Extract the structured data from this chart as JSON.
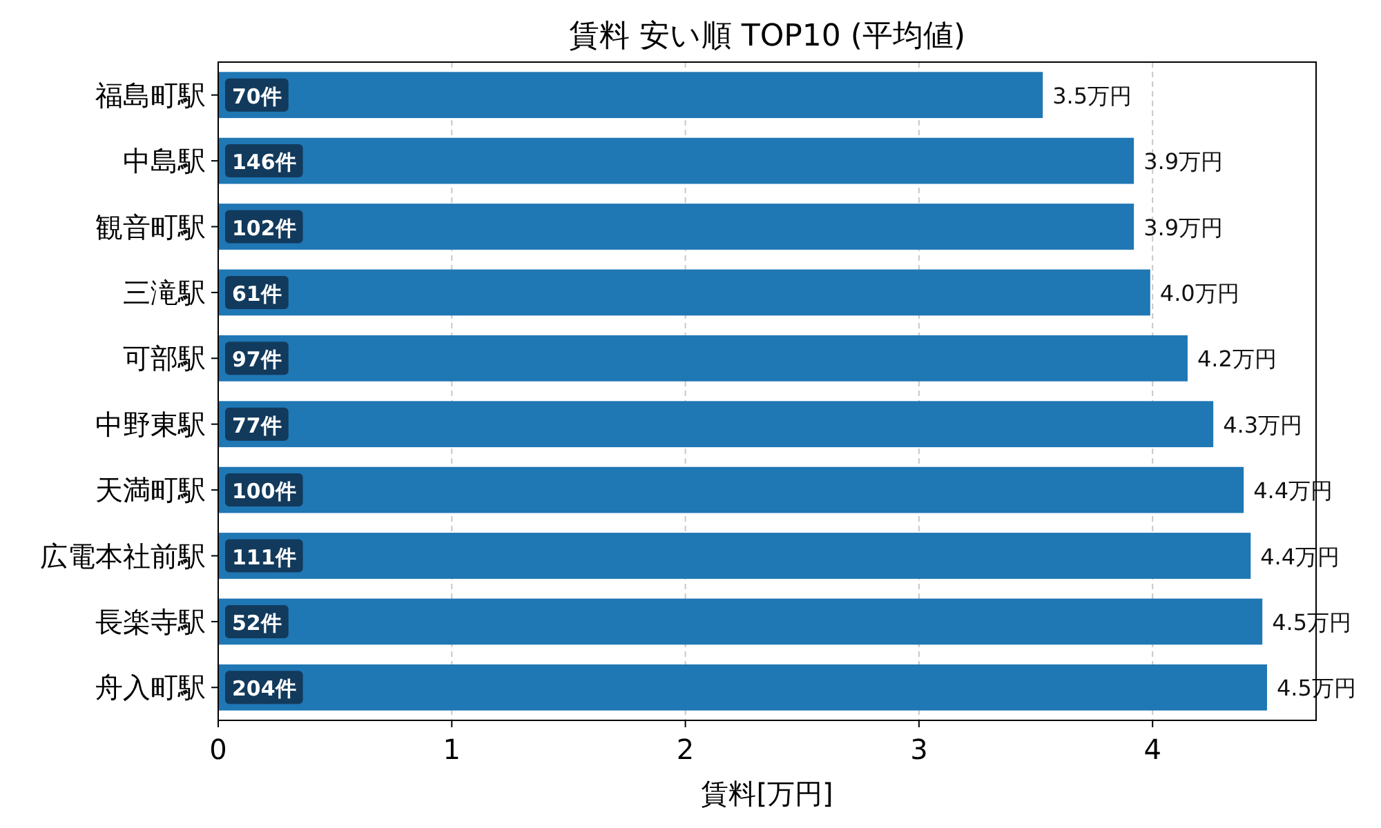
{
  "chart_data": {
    "type": "bar",
    "orientation": "horizontal",
    "title": "賃料 安い順 TOP10 (平均値)",
    "xlabel": "賃料[万円]",
    "categories": [
      "福島町駅",
      "中島駅",
      "観音町駅",
      "三滝駅",
      "可部駅",
      "中野東駅",
      "天満町駅",
      "広電本社前駅",
      "長楽寺駅",
      "舟入町駅"
    ],
    "values": [
      3.53,
      3.92,
      3.92,
      3.99,
      4.15,
      4.26,
      4.39,
      4.42,
      4.47,
      4.49
    ],
    "value_labels": [
      "3.5万円",
      "3.9万円",
      "3.9万円",
      "4.0万円",
      "4.2万円",
      "4.3万円",
      "4.4万円",
      "4.4万円",
      "4.5万円",
      "4.5万円"
    ],
    "color": "#1f77b4",
    "xlim": [
      0,
      4.7
    ],
    "xticks": [
      0,
      1,
      2,
      3,
      4
    ],
    "grid": "x",
    "annotations": [
      {
        "text": "70件",
        "y": "福島町駅"
      },
      {
        "text": "146件",
        "y": "中島駅"
      },
      {
        "text": "102件",
        "y": "観音町駅"
      },
      {
        "text": "61件",
        "y": "三滝駅"
      },
      {
        "text": "97件",
        "y": "可部駅"
      },
      {
        "text": "77件",
        "y": "中野東駅"
      },
      {
        "text": "100件",
        "y": "天満町駅"
      },
      {
        "text": "111件",
        "y": "広電本社前駅"
      },
      {
        "text": "52件",
        "y": "長楽寺駅"
      },
      {
        "text": "204件",
        "y": "舟入町駅"
      }
    ]
  }
}
